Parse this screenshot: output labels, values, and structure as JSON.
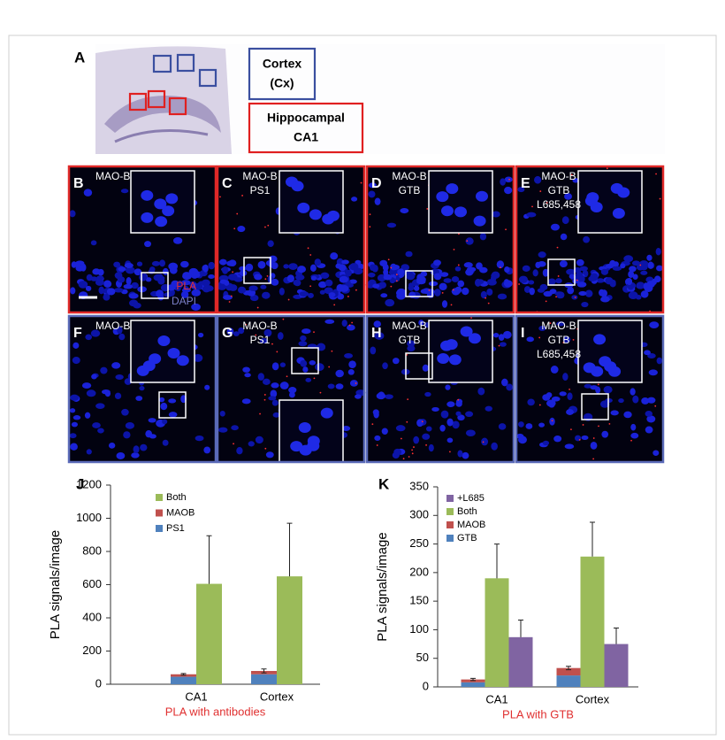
{
  "figure": {
    "panel_a": {
      "letter": "A",
      "regions": [
        [
          "Cortex",
          "(Cx)"
        ],
        [
          "Hippocampal",
          "CA1"
        ]
      ]
    },
    "panels": [
      {
        "letter": "B",
        "lines": [
          "MAO-B"
        ]
      },
      {
        "letter": "C",
        "lines": [
          "MAO-B",
          "PS1"
        ]
      },
      {
        "letter": "D",
        "lines": [
          "MAO-B",
          "GTB"
        ]
      },
      {
        "letter": "E",
        "lines": [
          "MAO-B",
          "GTB",
          "L685,458"
        ]
      },
      {
        "letter": "F",
        "lines": [
          "MAO-B"
        ]
      },
      {
        "letter": "G",
        "lines": [
          "MAO-B",
          "PS1"
        ]
      },
      {
        "letter": "H",
        "lines": [
          "MAO-B",
          "GTB"
        ]
      },
      {
        "letter": "I",
        "lines": [
          "MAO-B",
          "GTB",
          "L685,458"
        ]
      }
    ],
    "channels": [
      "PLA",
      "DAPI"
    ]
  },
  "chart_data": [
    {
      "type": "bar",
      "panel": "J",
      "ylabel": "PLA signals/image",
      "xlabel": "PLA with antibodies",
      "categories": [
        "CA1",
        "Cortex"
      ],
      "ylim": [
        0,
        1200
      ],
      "yticks": [
        0,
        200,
        400,
        600,
        800,
        1000,
        1200
      ],
      "series": [
        {
          "name": "PS1",
          "color": "#4f81bd",
          "values": [
            45,
            60
          ]
        },
        {
          "name": "MAOB",
          "color": "#c0504d",
          "stack": true,
          "values": [
            15,
            20
          ],
          "errors": [
            5,
            12
          ],
          "error_bars": "both"
        },
        {
          "name": "Both",
          "color": "#9bbb59",
          "values": [
            605,
            650
          ],
          "errors": [
            290,
            320
          ],
          "error_bars": "plus"
        }
      ]
    },
    {
      "type": "bar",
      "panel": "K",
      "ylabel": "PLA signals/image",
      "xlabel": "PLA with GTB",
      "categories": [
        "CA1",
        "Cortex"
      ],
      "ylim": [
        0,
        350
      ],
      "yticks": [
        0,
        50,
        100,
        150,
        200,
        250,
        300,
        350
      ],
      "series": [
        {
          "name": "GTB",
          "color": "#4f81bd",
          "values": [
            8,
            20
          ]
        },
        {
          "name": "MAOB",
          "color": "#c0504d",
          "stack": true,
          "values": [
            5,
            13
          ],
          "errors": [
            2,
            3
          ],
          "error_bars": "both"
        },
        {
          "name": "Both",
          "color": "#9bbb59",
          "values": [
            190,
            228
          ],
          "errors": [
            60,
            60
          ],
          "error_bars": "plus"
        },
        {
          "name": "+L685",
          "color": "#8064a2",
          "values": [
            87,
            75
          ],
          "errors": [
            30,
            28
          ],
          "error_bars": "plus"
        }
      ]
    }
  ]
}
